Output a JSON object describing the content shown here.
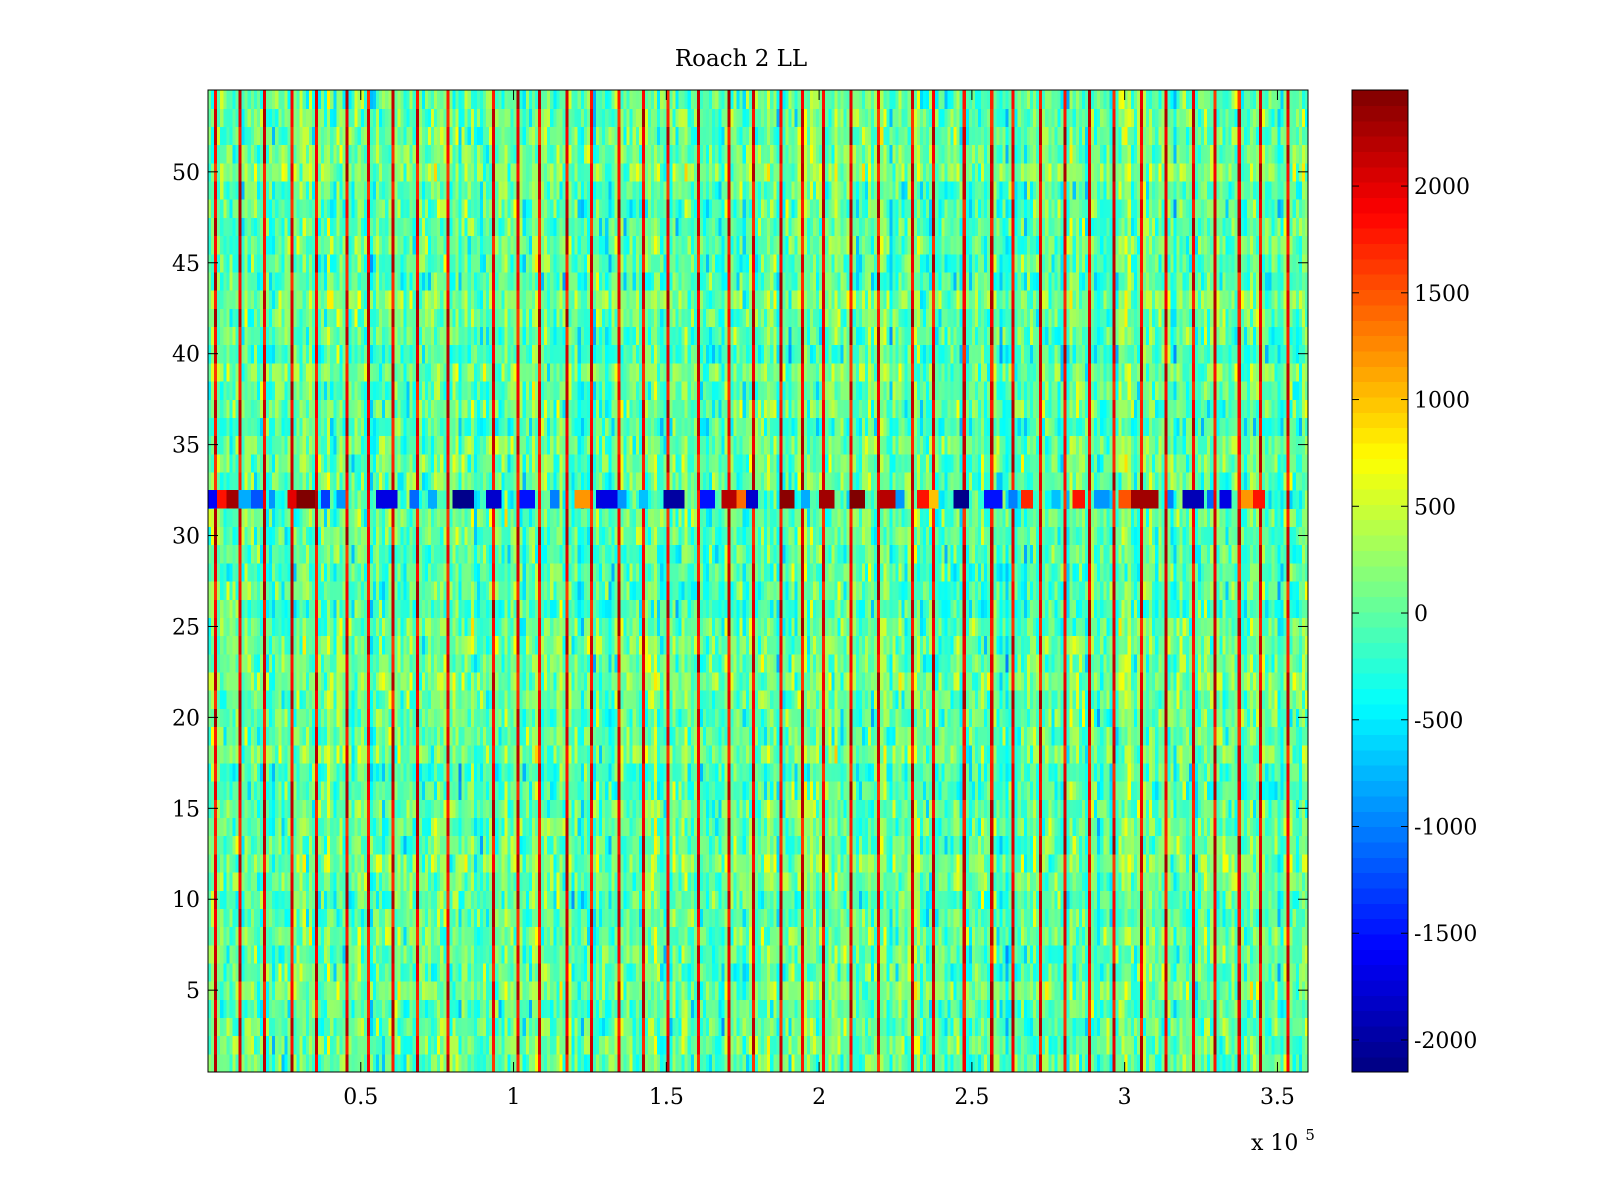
{
  "chart_data": {
    "type": "heatmap",
    "title": "Roach 2 LL",
    "xlabel": "",
    "ylabel": "",
    "colormap": "jet",
    "xlim": [
      0,
      360000
    ],
    "ylim": [
      0.5,
      54.5
    ],
    "clim": [
      -2150,
      2450
    ],
    "x_ticks": [
      50000,
      100000,
      150000,
      200000,
      250000,
      300000,
      350000
    ],
    "x_tick_labels": [
      "0.5",
      "1",
      "1.5",
      "2",
      "2.5",
      "3",
      "3.5"
    ],
    "x_exponent_label": {
      "base": "x 10",
      "power": "5"
    },
    "y_ticks": [
      5,
      10,
      15,
      20,
      25,
      30,
      35,
      40,
      45,
      50
    ],
    "y_tick_labels": [
      "5",
      "10",
      "15",
      "20",
      "25",
      "30",
      "35",
      "40",
      "45",
      "50"
    ],
    "colorbar": {
      "ticks": [
        2000,
        1500,
        1000,
        500,
        0,
        -500,
        -1000,
        -1500,
        -2000
      ],
      "tick_labels": [
        "2000",
        "1500",
        "1000",
        "500",
        "0",
        "-500",
        "-1000",
        "-1500",
        "-2000"
      ]
    },
    "rows": 54,
    "columns": 360,
    "background_mean": 0,
    "background_noise": 280,
    "hot_column_value": 2300,
    "hot_columns_x": [
      2000,
      10500,
      18500,
      27000,
      35000,
      45500,
      52000,
      60000,
      68500,
      78000,
      93000,
      101500,
      108000,
      117500,
      125500,
      134000,
      142000,
      150000,
      160000,
      170500,
      178500,
      187000,
      194500,
      201500,
      210500,
      219000,
      230000,
      237000,
      247000,
      256500,
      263500,
      272000,
      280500,
      288000,
      296000,
      305000,
      313000,
      322000,
      329500,
      337000,
      344500,
      353000
    ],
    "stripe_row": 32,
    "stripe_segments": [
      {
        "x0": 0,
        "x1": 3000,
        "value": -1600
      },
      {
        "x0": 3000,
        "x1": 6000,
        "value": 1800
      },
      {
        "x0": 6000,
        "x1": 10000,
        "value": 2300
      },
      {
        "x0": 10000,
        "x1": 14000,
        "value": -800
      },
      {
        "x0": 14000,
        "x1": 18000,
        "value": -1200
      },
      {
        "x0": 20000,
        "x1": 22000,
        "value": -900
      },
      {
        "x0": 26000,
        "x1": 29000,
        "value": 2000
      },
      {
        "x0": 29000,
        "x1": 35000,
        "value": 2450
      },
      {
        "x0": 37000,
        "x1": 40000,
        "value": -1300
      },
      {
        "x0": 42000,
        "x1": 45000,
        "value": -900
      },
      {
        "x0": 55000,
        "x1": 62000,
        "value": -1700
      },
      {
        "x0": 66000,
        "x1": 69000,
        "value": -1100
      },
      {
        "x0": 72000,
        "x1": 75000,
        "value": -800
      },
      {
        "x0": 80000,
        "x1": 87000,
        "value": -2100
      },
      {
        "x0": 91000,
        "x1": 96000,
        "value": -1800
      },
      {
        "x0": 102000,
        "x1": 107000,
        "value": -1500
      },
      {
        "x0": 112000,
        "x1": 115000,
        "value": -1000
      },
      {
        "x0": 120000,
        "x1": 125000,
        "value": 1200
      },
      {
        "x0": 127000,
        "x1": 134000,
        "value": -1700
      },
      {
        "x0": 134000,
        "x1": 137000,
        "value": -900
      },
      {
        "x0": 141000,
        "x1": 144000,
        "value": -700
      },
      {
        "x0": 149000,
        "x1": 156000,
        "value": -2000
      },
      {
        "x0": 161000,
        "x1": 166000,
        "value": -1500
      },
      {
        "x0": 168000,
        "x1": 173000,
        "value": 2200
      },
      {
        "x0": 173000,
        "x1": 176000,
        "value": 1400
      },
      {
        "x0": 176000,
        "x1": 180000,
        "value": -1800
      },
      {
        "x0": 187000,
        "x1": 192000,
        "value": 2400
      },
      {
        "x0": 194000,
        "x1": 197000,
        "value": -800
      },
      {
        "x0": 200000,
        "x1": 205000,
        "value": 2300
      },
      {
        "x0": 210000,
        "x1": 215000,
        "value": 2450
      },
      {
        "x0": 220000,
        "x1": 225000,
        "value": 2200
      },
      {
        "x0": 225000,
        "x1": 228000,
        "value": -900
      },
      {
        "x0": 232000,
        "x1": 236000,
        "value": 1800
      },
      {
        "x0": 236000,
        "x1": 239000,
        "value": 1000
      },
      {
        "x0": 244000,
        "x1": 249000,
        "value": -2100
      },
      {
        "x0": 254000,
        "x1": 260000,
        "value": -1500
      },
      {
        "x0": 262000,
        "x1": 265000,
        "value": -1000
      },
      {
        "x0": 266000,
        "x1": 270000,
        "value": 1700
      },
      {
        "x0": 276000,
        "x1": 279000,
        "value": -700
      },
      {
        "x0": 283000,
        "x1": 287000,
        "value": 1800
      },
      {
        "x0": 290000,
        "x1": 295000,
        "value": -900
      },
      {
        "x0": 298000,
        "x1": 302000,
        "value": 1500
      },
      {
        "x0": 302000,
        "x1": 311000,
        "value": 2300
      },
      {
        "x0": 314000,
        "x1": 316000,
        "value": -1000
      },
      {
        "x0": 319000,
        "x1": 326000,
        "value": -1900
      },
      {
        "x0": 327000,
        "x1": 329000,
        "value": -1100
      },
      {
        "x0": 331000,
        "x1": 335000,
        "value": -1700
      },
      {
        "x0": 338000,
        "x1": 342000,
        "value": 1200
      },
      {
        "x0": 342000,
        "x1": 346000,
        "value": 1800
      }
    ]
  }
}
